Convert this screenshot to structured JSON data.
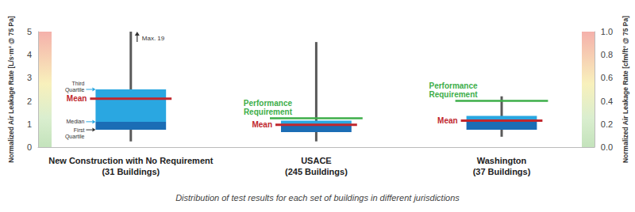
{
  "chart_data": {
    "type": "boxplot",
    "title": "Distribution of test results for each set of buildings in different jurisdictions",
    "ylabel": "Normalized Air Leakage Rate [L/s·m² @ 75 Pa]",
    "y2label": "Normalized Air Leakage Rate [cfm/ft² @ 75 Pa]",
    "categories": [
      "New Construction with No Requirement\n(31 Buildings)",
      "USACE\n(245 Buildings)",
      "Washington\n(37 Buildings)"
    ],
    "boxes": {
      "min": [
        0.25,
        0.25,
        0.45
      ],
      "q1": [
        0.75,
        0.65,
        0.75
      ],
      "median": [
        1.1,
        0.95,
        1.2
      ],
      "q3": [
        2.5,
        1.15,
        1.35
      ],
      "max": [
        19,
        4.55,
        2.2
      ],
      "color": "#2aa7e1",
      "max_label": "Max. 19"
    },
    "box_annotations": {
      "q3": "Third Quartile",
      "median": "Median",
      "q1": "First Quartile"
    },
    "series": [
      {
        "name": "Mean",
        "color": "#c1272d",
        "values": [
          2.1,
          0.97,
          1.15
        ]
      },
      {
        "name": "Performance Requirement",
        "color": "#3dae49",
        "values": [
          null,
          1.25,
          2.0
        ]
      }
    ],
    "ylim": [
      0,
      5
    ],
    "yticks": [
      0,
      1,
      2,
      3,
      4,
      5
    ],
    "y2lim": [
      0,
      1
    ],
    "y2ticks": [
      {
        "value": 0,
        "label": "0.0"
      },
      0.2,
      0.4,
      0.6,
      0.8,
      {
        "value": 1,
        "label": "1.0"
      }
    ],
    "grid": false
  }
}
